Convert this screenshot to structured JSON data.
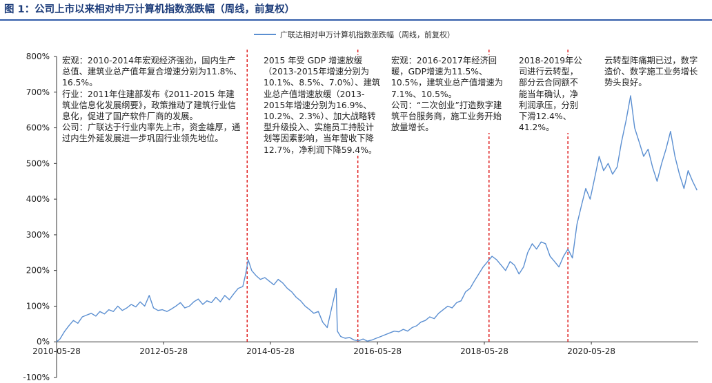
{
  "figure_title": "图 1：公司上市以来相对申万计算机指数涨跌幅（周线，前复权）",
  "colors": {
    "series": "#5b8fd1",
    "divider": "#e02020",
    "title": "#1c3c7a",
    "rule": "#2f5aa8"
  },
  "annotations": [
    "宏观：2010-2014年宏观经济强劲，国内生产总值、建筑业总产值年复合增速分别为11.8%、16.5%。\n行业：2011年住建部发布《2011-2015 年建筑业信息化发展纲要》，政策推动了建筑行业信息化，促进了国产软件厂商的发展。\n公司：广联达于行业内率先上市，资金雄厚，通过内生外延发展进一步巩固行业领先地位。",
    "2015 年受 GDP 增速放缓（2013-2015年增速分别为10.1%、8.5%、7.0%）、建筑业总产值增速放缓（2013-2015年增速分别为16.9%、10.2%、2.3%）、加大战略转型升级投入、实施员工持股计划等因素影响，当年营收下降12.7%，净利润下降59.4%。",
    "宏观：2016-2017年经济回暖，GDP增速为11.5%、10.5%，建筑业总产值增速为7.1%、10.5%。\n公司：“二次创业”打造数字建筑平台服务商，施工业务开始放量增长。",
    "2018-2019年公司进行云转型，部分云合同额不能当年确认，净利润承压，分别下滑12.4%、41.2%。",
    "云转型阵痛期已过，数字造价、数字施工业务增长势头良好。"
  ],
  "chart_data": {
    "type": "line",
    "title": "",
    "xlabel": "",
    "ylabel": "",
    "ylim": [
      -100,
      800
    ],
    "yticks": [
      "-100%",
      "0%",
      "100%",
      "200%",
      "300%",
      "400%",
      "500%",
      "600%",
      "700%",
      "800%"
    ],
    "xticks": [
      "2010-05-28",
      "2012-05-28",
      "2014-05-28",
      "2016-05-28",
      "2018-05-28",
      "2020-05-28"
    ],
    "xlim": [
      "2010-05-28",
      "2022-05-28"
    ],
    "grid": false,
    "legend": "top-center",
    "dividers": [
      "2013-12-20",
      "2016-01-15",
      "2018-06-29",
      "2019-12-20"
    ],
    "series": [
      {
        "name": "广联达相对申万计算机指数涨跌幅（周线，前复权）",
        "points": [
          [
            "2010-05-28",
            0
          ],
          [
            "2010-06-20",
            8
          ],
          [
            "2010-07-20",
            28
          ],
          [
            "2010-08-20",
            45
          ],
          [
            "2010-09-20",
            60
          ],
          [
            "2010-10-20",
            52
          ],
          [
            "2010-11-20",
            70
          ],
          [
            "2010-12-20",
            75
          ],
          [
            "2011-01-20",
            80
          ],
          [
            "2011-02-20",
            72
          ],
          [
            "2011-03-20",
            85
          ],
          [
            "2011-04-20",
            78
          ],
          [
            "2011-05-20",
            90
          ],
          [
            "2011-06-20",
            85
          ],
          [
            "2011-07-20",
            100
          ],
          [
            "2011-08-20",
            88
          ],
          [
            "2011-09-20",
            95
          ],
          [
            "2011-10-20",
            105
          ],
          [
            "2011-11-20",
            98
          ],
          [
            "2011-12-20",
            112
          ],
          [
            "2012-01-20",
            100
          ],
          [
            "2012-02-20",
            130
          ],
          [
            "2012-03-20",
            95
          ],
          [
            "2012-04-20",
            88
          ],
          [
            "2012-05-20",
            90
          ],
          [
            "2012-06-20",
            85
          ],
          [
            "2012-07-20",
            92
          ],
          [
            "2012-08-20",
            100
          ],
          [
            "2012-09-20",
            110
          ],
          [
            "2012-10-20",
            95
          ],
          [
            "2012-11-20",
            100
          ],
          [
            "2012-12-20",
            112
          ],
          [
            "2013-01-20",
            120
          ],
          [
            "2013-02-20",
            105
          ],
          [
            "2013-03-20",
            115
          ],
          [
            "2013-04-20",
            110
          ],
          [
            "2013-05-20",
            125
          ],
          [
            "2013-06-20",
            112
          ],
          [
            "2013-07-20",
            130
          ],
          [
            "2013-08-20",
            118
          ],
          [
            "2013-09-20",
            135
          ],
          [
            "2013-10-20",
            150
          ],
          [
            "2013-11-20",
            155
          ],
          [
            "2013-12-10",
            190
          ],
          [
            "2013-12-27",
            230
          ],
          [
            "2014-01-20",
            200
          ],
          [
            "2014-02-20",
            185
          ],
          [
            "2014-03-20",
            175
          ],
          [
            "2014-04-20",
            180
          ],
          [
            "2014-05-20",
            170
          ],
          [
            "2014-06-20",
            160
          ],
          [
            "2014-07-20",
            175
          ],
          [
            "2014-08-20",
            165
          ],
          [
            "2014-09-20",
            150
          ],
          [
            "2014-10-20",
            140
          ],
          [
            "2014-11-20",
            125
          ],
          [
            "2014-12-20",
            115
          ],
          [
            "2015-01-20",
            100
          ],
          [
            "2015-02-20",
            90
          ],
          [
            "2015-03-20",
            80
          ],
          [
            "2015-04-20",
            85
          ],
          [
            "2015-05-20",
            55
          ],
          [
            "2015-06-20",
            40
          ],
          [
            "2015-07-20",
            95
          ],
          [
            "2015-08-20",
            150
          ],
          [
            "2015-08-28",
            30
          ],
          [
            "2015-09-20",
            15
          ],
          [
            "2015-10-20",
            10
          ],
          [
            "2015-11-20",
            12
          ],
          [
            "2015-12-20",
            5
          ],
          [
            "2016-01-20",
            3
          ],
          [
            "2016-02-20",
            8
          ],
          [
            "2016-03-20",
            2
          ],
          [
            "2016-04-20",
            5
          ],
          [
            "2016-05-20",
            10
          ],
          [
            "2016-06-20",
            15
          ],
          [
            "2016-07-20",
            20
          ],
          [
            "2016-08-20",
            25
          ],
          [
            "2016-09-20",
            30
          ],
          [
            "2016-10-20",
            28
          ],
          [
            "2016-11-20",
            35
          ],
          [
            "2016-12-20",
            30
          ],
          [
            "2017-01-20",
            40
          ],
          [
            "2017-02-20",
            45
          ],
          [
            "2017-03-20",
            55
          ],
          [
            "2017-04-20",
            60
          ],
          [
            "2017-05-20",
            70
          ],
          [
            "2017-06-20",
            65
          ],
          [
            "2017-07-20",
            80
          ],
          [
            "2017-08-20",
            90
          ],
          [
            "2017-09-20",
            100
          ],
          [
            "2017-10-20",
            95
          ],
          [
            "2017-11-20",
            110
          ],
          [
            "2017-12-20",
            115
          ],
          [
            "2018-01-20",
            140
          ],
          [
            "2018-02-20",
            150
          ],
          [
            "2018-03-20",
            170
          ],
          [
            "2018-04-20",
            190
          ],
          [
            "2018-05-20",
            210
          ],
          [
            "2018-06-20",
            225
          ],
          [
            "2018-07-20",
            240
          ],
          [
            "2018-08-20",
            230
          ],
          [
            "2018-09-20",
            215
          ],
          [
            "2018-10-20",
            200
          ],
          [
            "2018-11-20",
            225
          ],
          [
            "2018-12-20",
            215
          ],
          [
            "2019-01-20",
            190
          ],
          [
            "2019-02-20",
            210
          ],
          [
            "2019-03-20",
            250
          ],
          [
            "2019-04-20",
            275
          ],
          [
            "2019-05-20",
            260
          ],
          [
            "2019-06-20",
            280
          ],
          [
            "2019-07-20",
            275
          ],
          [
            "2019-08-20",
            240
          ],
          [
            "2019-09-20",
            225
          ],
          [
            "2019-10-20",
            210
          ],
          [
            "2019-11-20",
            240
          ],
          [
            "2019-12-20",
            260
          ],
          [
            "2020-01-20",
            235
          ],
          [
            "2020-02-20",
            330
          ],
          [
            "2020-03-20",
            380
          ],
          [
            "2020-04-20",
            430
          ],
          [
            "2020-05-20",
            400
          ],
          [
            "2020-06-20",
            460
          ],
          [
            "2020-07-20",
            520
          ],
          [
            "2020-08-20",
            480
          ],
          [
            "2020-09-20",
            500
          ],
          [
            "2020-10-20",
            470
          ],
          [
            "2020-11-20",
            490
          ],
          [
            "2020-12-20",
            560
          ],
          [
            "2021-01-20",
            620
          ],
          [
            "2021-02-20",
            690
          ],
          [
            "2021-03-20",
            600
          ],
          [
            "2021-04-20",
            560
          ],
          [
            "2021-05-20",
            520
          ],
          [
            "2021-06-20",
            540
          ],
          [
            "2021-07-20",
            490
          ],
          [
            "2021-08-20",
            450
          ],
          [
            "2021-09-20",
            500
          ],
          [
            "2021-10-20",
            540
          ],
          [
            "2021-11-20",
            590
          ],
          [
            "2021-12-20",
            520
          ],
          [
            "2022-01-20",
            470
          ],
          [
            "2022-02-20",
            430
          ],
          [
            "2022-03-20",
            480
          ],
          [
            "2022-04-20",
            450
          ],
          [
            "2022-05-20",
            425
          ]
        ]
      }
    ]
  }
}
